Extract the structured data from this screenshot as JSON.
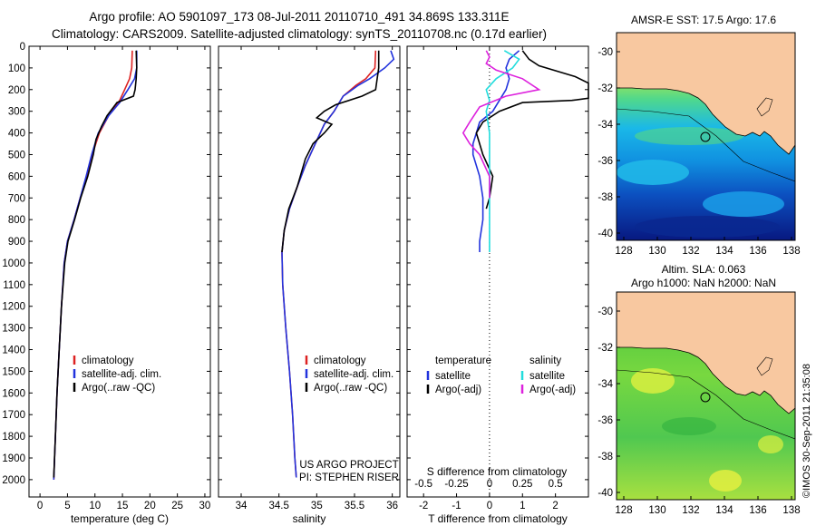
{
  "header": {
    "line1": "Argo profile: AO 5901097_173 08-Jul-2011 20110710_491 34.869S 133.311E",
    "line2": "Climatology: CARS2009. Satellite-adjusted climatology: synTS_20110708.nc (0.17d earlier)"
  },
  "chart_data": [
    {
      "type": "line",
      "name": "temperature",
      "xlabel": "temperature (deg C)",
      "xlim": [
        -2,
        31
      ],
      "ylim": [
        0,
        2080
      ],
      "xticks": [
        "0",
        "5",
        "10",
        "15",
        "20",
        "25",
        "30"
      ],
      "xtick_values": [
        0,
        5,
        10,
        15,
        20,
        25,
        30
      ],
      "yticks": [
        "0",
        "100",
        "200",
        "300",
        "400",
        "500",
        "600",
        "700",
        "800",
        "900",
        "1000",
        "1100",
        "1200",
        "1300",
        "1400",
        "1500",
        "1600",
        "1700",
        "1800",
        "1900",
        "2000"
      ],
      "ytick_values": [
        0,
        100,
        200,
        300,
        400,
        500,
        600,
        700,
        800,
        900,
        1000,
        1100,
        1200,
        1300,
        1400,
        1500,
        1600,
        1700,
        1800,
        1900,
        2000
      ],
      "legend": [
        "climatology",
        "satellite-adj. clim.",
        "Argo(..raw -QC)"
      ],
      "series": [
        {
          "name": "climatology",
          "color": "#dd2222",
          "points": [
            [
              16.8,
              20
            ],
            [
              16.7,
              100
            ],
            [
              16.3,
              150
            ],
            [
              15.4,
              200
            ],
            [
              14.5,
              250
            ],
            [
              12.5,
              320
            ],
            [
              10.8,
              400
            ],
            [
              9.5,
              500
            ],
            [
              8.5,
              600
            ],
            [
              7.3,
              700
            ],
            [
              6.2,
              800
            ],
            [
              5.0,
              900
            ],
            [
              4.4,
              1000
            ],
            [
              3.9,
              1200
            ],
            [
              3.5,
              1400
            ],
            [
              3.1,
              1600
            ],
            [
              2.8,
              1800
            ],
            [
              2.5,
              2000
            ]
          ]
        },
        {
          "name": "satellite-adj. clim.",
          "color": "#2233dd",
          "points": [
            [
              17.6,
              20
            ],
            [
              17.6,
              100
            ],
            [
              17.2,
              150
            ],
            [
              16.0,
              200
            ],
            [
              14.5,
              260
            ],
            [
              12.5,
              320
            ],
            [
              10.6,
              400
            ],
            [
              9.4,
              500
            ],
            [
              8.4,
              600
            ],
            [
              7.3,
              700
            ],
            [
              6.2,
              800
            ],
            [
              5.0,
              900
            ],
            [
              4.4,
              1000
            ],
            [
              3.9,
              1200
            ],
            [
              3.5,
              1400
            ],
            [
              3.1,
              1600
            ],
            [
              2.8,
              1800
            ],
            [
              2.5,
              2000
            ]
          ]
        },
        {
          "name": "Argo(..raw -QC)",
          "color": "#000000",
          "points": [
            [
              17.5,
              20
            ],
            [
              17.6,
              100
            ],
            [
              17.5,
              150
            ],
            [
              17.3,
              200
            ],
            [
              17.0,
              230
            ],
            [
              14.0,
              260
            ],
            [
              12.2,
              320
            ],
            [
              11.2,
              370
            ],
            [
              10.2,
              430
            ],
            [
              9.7,
              500
            ],
            [
              8.7,
              600
            ],
            [
              7.4,
              700
            ],
            [
              6.3,
              800
            ],
            [
              5.1,
              900
            ],
            [
              4.5,
              1000
            ],
            [
              3.9,
              1200
            ],
            [
              3.5,
              1400
            ],
            [
              3.1,
              1600
            ],
            [
              2.8,
              1800
            ],
            [
              2.5,
              1990
            ]
          ]
        }
      ]
    },
    {
      "type": "line",
      "name": "salinity",
      "xlabel": "salinity",
      "xlim": [
        33.7,
        36.1
      ],
      "ylim": [
        0,
        2080
      ],
      "xticks": [
        "34",
        "34.5",
        "35",
        "35.5",
        "36"
      ],
      "xtick_values": [
        34,
        34.5,
        35,
        35.5,
        36
      ],
      "legend": [
        "climatology",
        "satellite-adj. clim.",
        "Argo(..raw -QC)"
      ],
      "annotation": [
        "US ARGO PROJECT",
        "PI: STEPHEN RISER"
      ],
      "series": [
        {
          "name": "climatology",
          "color": "#dd2222",
          "points": [
            [
              35.78,
              20
            ],
            [
              35.77,
              100
            ],
            [
              35.65,
              150
            ],
            [
              35.52,
              180
            ],
            [
              35.35,
              230
            ],
            [
              35.23,
              300
            ],
            [
              35.1,
              360
            ],
            [
              34.98,
              450
            ],
            [
              34.85,
              550
            ],
            [
              34.74,
              650
            ],
            [
              34.64,
              750
            ],
            [
              34.57,
              850
            ],
            [
              34.54,
              950
            ],
            [
              34.55,
              1100
            ],
            [
              34.59,
              1300
            ],
            [
              34.64,
              1500
            ],
            [
              34.68,
              1700
            ],
            [
              34.71,
              1900
            ],
            [
              34.73,
              1990
            ]
          ]
        },
        {
          "name": "satellite-adj. clim.",
          "color": "#2233dd",
          "points": [
            [
              35.98,
              20
            ],
            [
              36.02,
              60
            ],
            [
              35.9,
              100
            ],
            [
              35.7,
              150
            ],
            [
              35.55,
              180
            ],
            [
              35.35,
              230
            ],
            [
              35.23,
              300
            ],
            [
              35.1,
              360
            ],
            [
              34.98,
              450
            ],
            [
              34.85,
              550
            ],
            [
              34.74,
              650
            ],
            [
              34.64,
              750
            ],
            [
              34.57,
              850
            ],
            [
              34.54,
              950
            ],
            [
              34.55,
              1100
            ],
            [
              34.59,
              1300
            ],
            [
              34.64,
              1500
            ],
            [
              34.68,
              1700
            ],
            [
              34.71,
              1900
            ],
            [
              34.73,
              1990
            ]
          ]
        },
        {
          "name": "Argo(..raw -QC)",
          "color": "#000000",
          "points": [
            [
              35.82,
              20
            ],
            [
              35.82,
              100
            ],
            [
              35.8,
              150
            ],
            [
              35.78,
              200
            ],
            [
              35.6,
              230
            ],
            [
              35.25,
              270
            ],
            [
              35.1,
              300
            ],
            [
              35.0,
              330
            ],
            [
              35.2,
              360
            ],
            [
              35.1,
              400
            ],
            [
              34.95,
              450
            ],
            [
              34.85,
              520
            ],
            [
              34.74,
              650
            ],
            [
              34.63,
              750
            ],
            [
              34.57,
              850
            ],
            [
              34.54,
              950
            ]
          ]
        }
      ]
    },
    {
      "type": "line",
      "name": "difference",
      "xlabel": "T difference from climatology",
      "top_label": "S difference from climatology",
      "xlim": [
        -2.5,
        3
      ],
      "ylim": [
        0,
        2080
      ],
      "xticks": [
        "-2",
        "-1",
        "0",
        "1",
        "2"
      ],
      "xtick_values": [
        -2,
        -1,
        0,
        1,
        2
      ],
      "top_xticks": [
        "-0.5",
        "-0.25",
        "0",
        "0.25",
        "0.5"
      ],
      "top_xtick_values": [
        -0.5,
        -0.25,
        0,
        0.25,
        0.5
      ],
      "legend_left": {
        "title": "temperature",
        "items": [
          "satellite",
          "Argo(-adj)"
        ]
      },
      "legend_right": {
        "title": "salinity",
        "items": [
          "satellite",
          "Argo(-adj)"
        ]
      },
      "series": [
        {
          "name": "temperature satellite",
          "color": "#2233dd",
          "points": [
            [
              0.9,
              20
            ],
            [
              0.6,
              60
            ],
            [
              0.5,
              100
            ],
            [
              0.6,
              150
            ],
            [
              0.5,
              200
            ],
            [
              0.3,
              250
            ],
            [
              0.1,
              300
            ],
            [
              -0.3,
              350
            ],
            [
              -0.4,
              400
            ],
            [
              -0.5,
              450
            ],
            [
              -0.5,
              500
            ],
            [
              -0.3,
              600
            ],
            [
              -0.2,
              700
            ],
            [
              -0.2,
              800
            ],
            [
              -0.3,
              900
            ],
            [
              -0.3,
              950
            ]
          ]
        },
        {
          "name": "temperature Argo(-adj)",
          "color": "#000000",
          "points": [
            [
              1.0,
              20
            ],
            [
              1.2,
              60
            ],
            [
              1.5,
              90
            ],
            [
              2.6,
              140
            ],
            [
              3.0,
              170
            ],
            [
              3.0,
              240
            ],
            [
              2.5,
              250
            ],
            [
              1.0,
              260
            ],
            [
              0.3,
              300
            ],
            [
              -0.2,
              350
            ],
            [
              -0.4,
              400
            ],
            [
              -0.3,
              450
            ],
            [
              -0.2,
              500
            ],
            [
              0.1,
              600
            ],
            [
              0.0,
              700
            ],
            [
              -0.1,
              750
            ]
          ]
        },
        {
          "name": "salinity satellite",
          "color": "#22dddd",
          "points": [
            [
              0.45,
              20
            ],
            [
              0.9,
              60
            ],
            [
              0.7,
              100
            ],
            [
              0.2,
              150
            ],
            [
              -0.1,
              200
            ],
            [
              0.0,
              250
            ],
            [
              -0.1,
              300
            ],
            [
              0.0,
              400
            ],
            [
              0.0,
              500
            ],
            [
              0.0,
              600
            ],
            [
              0.0,
              700
            ],
            [
              0.0,
              800
            ],
            [
              0.0,
              900
            ],
            [
              0.0,
              950
            ]
          ]
        },
        {
          "name": "salinity Argo(-adj)",
          "color": "#dd22dd",
          "points": [
            [
              -0.1,
              20
            ],
            [
              0.0,
              50
            ],
            [
              -0.1,
              80
            ],
            [
              0.2,
              110
            ],
            [
              1.0,
              150
            ],
            [
              1.5,
              200
            ],
            [
              0.5,
              230
            ],
            [
              -0.3,
              280
            ],
            [
              -0.6,
              350
            ],
            [
              -0.8,
              400
            ],
            [
              -0.6,
              450
            ],
            [
              -0.3,
              500
            ],
            [
              0.0,
              600
            ],
            [
              0.0,
              700
            ]
          ]
        }
      ]
    },
    {
      "type": "heatmap",
      "name": "sst map",
      "title": "AMSR-E SST: 17.5 Argo: 17.6",
      "xticks": [
        "128",
        "130",
        "132",
        "134",
        "136",
        "138"
      ],
      "yticks": [
        "-30",
        "-32",
        "-34",
        "-36",
        "-38",
        "-40"
      ],
      "marker": [
        133.311,
        -34.869
      ]
    },
    {
      "type": "heatmap",
      "name": "sla map",
      "title_lines": [
        "Altim. SLA: 0.063",
        "Argo h1000: NaN h2000: NaN"
      ],
      "xticks": [
        "128",
        "130",
        "132",
        "134",
        "136",
        "138"
      ],
      "yticks": [
        "-30",
        "-32",
        "-34",
        "-36",
        "-38",
        "-40"
      ],
      "marker": [
        133.311,
        -34.869
      ]
    }
  ],
  "credit": "©IMOS 30-Sep-2011 21:35:08"
}
